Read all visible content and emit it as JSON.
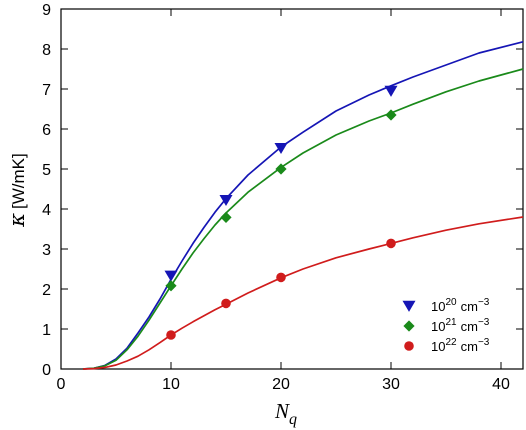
{
  "chart_data": {
    "type": "scatter",
    "title": "",
    "xlabel": "N",
    "xlabel_sub": "q",
    "ylabel_symbol": "κ",
    "ylabel_unit": "[W/mK]",
    "xlim": [
      0,
      42
    ],
    "ylim": [
      0,
      9
    ],
    "xticks": [
      0,
      10,
      20,
      30,
      40
    ],
    "yticks": [
      0,
      1,
      2,
      3,
      4,
      5,
      6,
      7,
      8,
      9
    ],
    "grid": false,
    "legend_position": "bottom-right",
    "series": [
      {
        "name": "10",
        "name_sup": "20",
        "name_unit": "cm",
        "name_unit_sup": "−3",
        "marker": "triangle-down",
        "color": "#1515b5",
        "x": [
          10,
          15,
          20,
          30
        ],
        "y": [
          2.33,
          4.22,
          5.52,
          6.95
        ],
        "fit_curve": [
          [
            2.0,
            0.0
          ],
          [
            3.0,
            0.02
          ],
          [
            4.0,
            0.09
          ],
          [
            5.0,
            0.25
          ],
          [
            6.0,
            0.52
          ],
          [
            7.0,
            0.9
          ],
          [
            8.0,
            1.3
          ],
          [
            9.0,
            1.75
          ],
          [
            10.0,
            2.24
          ],
          [
            11.0,
            2.7
          ],
          [
            12.0,
            3.14
          ],
          [
            13.0,
            3.54
          ],
          [
            14.0,
            3.92
          ],
          [
            15.0,
            4.26
          ],
          [
            17.0,
            4.85
          ],
          [
            20.0,
            5.55
          ],
          [
            22.0,
            5.92
          ],
          [
            25.0,
            6.45
          ],
          [
            28.0,
            6.85
          ],
          [
            30.0,
            7.08
          ],
          [
            32.0,
            7.3
          ],
          [
            35.0,
            7.6
          ],
          [
            38.0,
            7.9
          ],
          [
            42.0,
            8.18
          ]
        ]
      },
      {
        "name": "10",
        "name_sup": "21",
        "name_unit": "cm",
        "name_unit_sup": "−3",
        "marker": "diamond",
        "color": "#1a8a1a",
        "x": [
          10,
          15,
          20,
          30
        ],
        "y": [
          2.08,
          3.79,
          5.0,
          6.35
        ],
        "fit_curve": [
          [
            2.0,
            0.0
          ],
          [
            3.0,
            0.02
          ],
          [
            4.0,
            0.08
          ],
          [
            5.0,
            0.22
          ],
          [
            6.0,
            0.48
          ],
          [
            7.0,
            0.82
          ],
          [
            8.0,
            1.22
          ],
          [
            9.0,
            1.65
          ],
          [
            10.0,
            2.08
          ],
          [
            11.0,
            2.5
          ],
          [
            12.0,
            2.9
          ],
          [
            13.0,
            3.26
          ],
          [
            14.0,
            3.6
          ],
          [
            15.0,
            3.9
          ],
          [
            17.0,
            4.42
          ],
          [
            20.0,
            5.04
          ],
          [
            22.0,
            5.4
          ],
          [
            25.0,
            5.85
          ],
          [
            28.0,
            6.2
          ],
          [
            30.0,
            6.4
          ],
          [
            32.0,
            6.62
          ],
          [
            35.0,
            6.93
          ],
          [
            38.0,
            7.2
          ],
          [
            42.0,
            7.5
          ]
        ]
      },
      {
        "name": "10",
        "name_sup": "22",
        "name_unit": "cm",
        "name_unit_sup": "−3",
        "marker": "circle",
        "color": "#d01c1c",
        "x": [
          10,
          15,
          20,
          30
        ],
        "y": [
          0.85,
          1.64,
          2.29,
          3.14
        ],
        "fit_curve": [
          [
            2.0,
            0.0
          ],
          [
            3.0,
            0.01
          ],
          [
            4.0,
            0.04
          ],
          [
            5.0,
            0.1
          ],
          [
            6.0,
            0.2
          ],
          [
            7.0,
            0.32
          ],
          [
            8.0,
            0.48
          ],
          [
            9.0,
            0.66
          ],
          [
            10.0,
            0.85
          ],
          [
            11.0,
            1.02
          ],
          [
            12.0,
            1.18
          ],
          [
            13.0,
            1.33
          ],
          [
            14.0,
            1.48
          ],
          [
            15.0,
            1.62
          ],
          [
            17.0,
            1.9
          ],
          [
            20.0,
            2.28
          ],
          [
            22.0,
            2.5
          ],
          [
            25.0,
            2.78
          ],
          [
            28.0,
            3.0
          ],
          [
            30.0,
            3.14
          ],
          [
            32.0,
            3.28
          ],
          [
            35.0,
            3.47
          ],
          [
            38.0,
            3.63
          ],
          [
            42.0,
            3.8
          ]
        ]
      }
    ]
  }
}
